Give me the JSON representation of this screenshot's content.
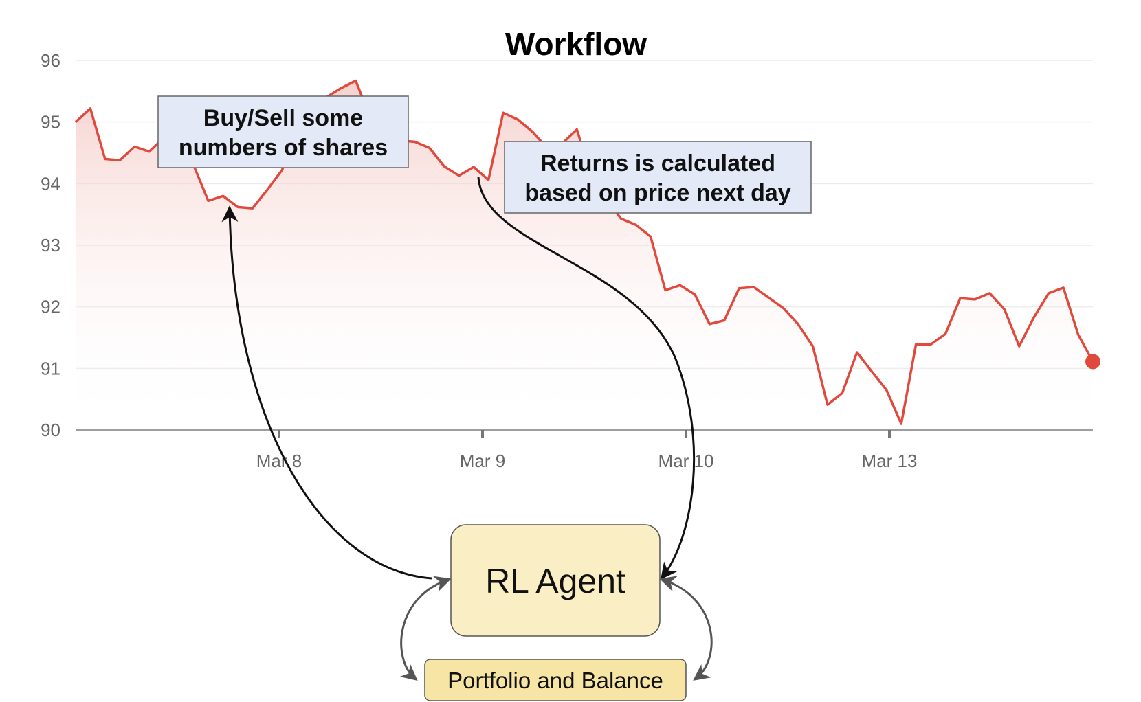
{
  "title": "Workflow",
  "colors": {
    "line": "#e0493b",
    "area_top": "#f2c2bd",
    "note_fill": "#e3e9f7",
    "agent_fill": "#faeec4",
    "portfolio_fill": "#f7e5a6",
    "arrow_dark": "#111111",
    "arrow_gray": "#555555"
  },
  "chart_data": {
    "type": "area",
    "title": "Workflow",
    "xlabel": "",
    "ylabel": "",
    "ylim": [
      90,
      96
    ],
    "yticks": [
      90,
      91,
      92,
      93,
      94,
      95,
      96
    ],
    "xticks": [
      "Mar 8",
      "Mar 9",
      "Mar 10",
      "Mar 13"
    ],
    "grid": true,
    "values": [
      95.0,
      95.22,
      94.4,
      94.38,
      94.6,
      94.52,
      94.75,
      94.36,
      94.3,
      93.72,
      93.8,
      93.62,
      93.6,
      93.9,
      94.22,
      94.8,
      95.1,
      95.4,
      95.55,
      95.67,
      95.07,
      95.1,
      94.7,
      94.68,
      94.58,
      94.28,
      94.13,
      94.27,
      94.06,
      95.15,
      95.04,
      94.84,
      94.57,
      94.65,
      94.88,
      94.1,
      93.75,
      93.43,
      93.33,
      93.14,
      92.27,
      92.35,
      92.2,
      91.72,
      91.78,
      92.3,
      92.32,
      92.15,
      91.98,
      91.72,
      91.36,
      90.41,
      90.6,
      91.26,
      90.95,
      90.65,
      90.1,
      91.39,
      91.39,
      91.56,
      92.14,
      92.12,
      92.22,
      91.96,
      91.36,
      91.83,
      92.22,
      92.31,
      91.55,
      91.11
    ]
  },
  "notes": {
    "buy_sell": [
      "Buy/Sell some",
      "numbers of shares"
    ],
    "returns": [
      "Returns is calculated",
      "based on price next day"
    ]
  },
  "agent": {
    "label": "RL Agent"
  },
  "portfolio": {
    "label": "Portfolio and Balance"
  }
}
